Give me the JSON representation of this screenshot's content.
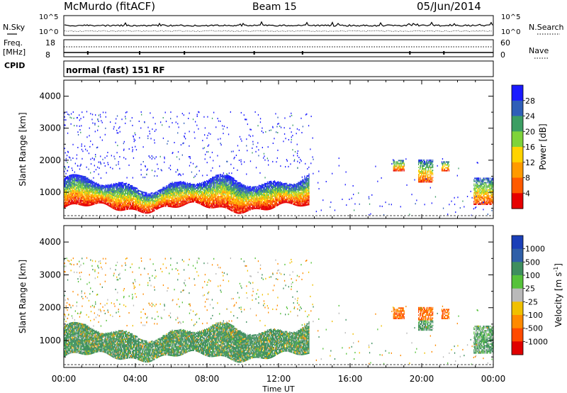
{
  "header": {
    "station": "McMurdo (fitACF)",
    "beam": "Beam 15",
    "date": "05/Jun/2014"
  },
  "strips": {
    "nsky_label": "N.Sky",
    "nsky_ticks": [
      "10^5",
      "10^0"
    ],
    "nsearch_label": "N.Search",
    "nsearch_ticks": [
      "10^5",
      "10^0"
    ],
    "freq_label_1": "Freq.",
    "freq_label_2": "[MHz]",
    "freq_ticks": [
      "18",
      "8"
    ],
    "nave_label": "Nave",
    "nave_ticks": [
      "60",
      "0"
    ],
    "cpid_label": "CPID",
    "cpid_text": "normal (fast) 151 RF"
  },
  "chart_data": [
    {
      "type": "heatmap",
      "name": "power",
      "ylabel": "Slant Range [km]",
      "xlabel": "",
      "ylim": [
        180,
        4500
      ],
      "xlim": [
        0,
        24
      ],
      "y_ticks": [
        "1000",
        "2000",
        "3000",
        "4000"
      ],
      "y_tick_values": [
        1000,
        2000,
        3000,
        4000
      ],
      "colorbar": {
        "label": "Power [dB]",
        "ticks": [
          "4",
          "8",
          "12",
          "16",
          "20",
          "24",
          "28"
        ],
        "colors": [
          "#1a1aff",
          "#2f5fb8",
          "#3c9e63",
          "#7fd33a",
          "#ffd300",
          "#ff9a00",
          "#ff5a00",
          "#e60000"
        ]
      }
    },
    {
      "type": "heatmap",
      "name": "velocity",
      "ylabel": "Slant Range [km]",
      "xlabel": "Time UT",
      "ylim": [
        180,
        4500
      ],
      "xlim": [
        0,
        24
      ],
      "y_ticks": [
        "1000",
        "2000",
        "3000",
        "4000"
      ],
      "y_tick_values": [
        1000,
        2000,
        3000,
        4000
      ],
      "x_ticks": [
        "00:00",
        "04:00",
        "08:00",
        "12:00",
        "16:00",
        "20:00",
        "00:00"
      ],
      "x_tick_values": [
        0,
        4,
        8,
        12,
        16,
        20,
        24
      ],
      "colorbar": {
        "label": "Velocity [m s",
        "label_sup": "-1",
        "label_end": "]",
        "ticks": [
          "1000",
          "500",
          "100",
          "25",
          "-25",
          "-100",
          "-500",
          "-1000"
        ],
        "colors": [
          "#1a3fb8",
          "#2f5fa8",
          "#3e8e5e",
          "#56c23a",
          "#b9b9b9",
          "#f0c000",
          "#ff8a00",
          "#ff4a00",
          "#e00000"
        ]
      }
    }
  ],
  "colors": {
    "ground": "#808080"
  }
}
